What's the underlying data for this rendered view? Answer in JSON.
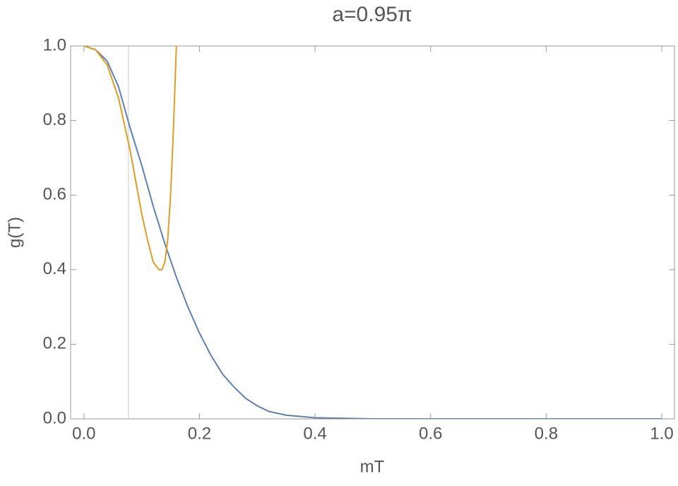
{
  "chart_data": {
    "type": "line",
    "title": "a=0.95π",
    "x_label": "mT",
    "y_label": "g(T)",
    "xlim": [
      -0.023,
      1.022
    ],
    "ylim": [
      0,
      1
    ],
    "xticks": [
      {
        "value": 0,
        "label": "0.0"
      },
      0.2,
      0.4,
      0.6,
      0.8,
      {
        "value": 1,
        "label": "1.0"
      }
    ],
    "yticks": [
      {
        "value": 0,
        "label": "0.0"
      },
      0.2,
      0.4,
      0.6,
      0.8,
      {
        "value": 1,
        "label": "1.0"
      }
    ],
    "vline": 0.077,
    "vline_color": "#c8c8c8",
    "series": [
      {
        "color": "#5e81b5",
        "x": [
          0,
          0.02,
          0.04,
          0.06,
          0.08,
          0.1,
          0.12,
          0.14,
          0.16,
          0.18,
          0.2,
          0.22,
          0.24,
          0.26,
          0.28,
          0.3,
          0.32,
          0.35,
          0.4,
          0.5,
          1
        ],
        "values": [
          1,
          0.99,
          0.96,
          0.89,
          0.78,
          0.68,
          0.57,
          0.47,
          0.38,
          0.3,
          0.23,
          0.17,
          0.12,
          0.085,
          0.055,
          0.035,
          0.02,
          0.01,
          0.003,
          0,
          0
        ]
      },
      {
        "color": "#e19c24",
        "x": [
          0,
          0.02,
          0.04,
          0.06,
          0.08,
          0.1,
          0.11,
          0.12,
          0.13,
          0.135,
          0.14,
          0.145,
          0.15,
          0.155,
          0.16
        ],
        "values": [
          1,
          0.99,
          0.95,
          0.86,
          0.72,
          0.55,
          0.48,
          0.42,
          0.4,
          0.4,
          0.42,
          0.48,
          0.6,
          0.78,
          1
        ]
      }
    ]
  }
}
